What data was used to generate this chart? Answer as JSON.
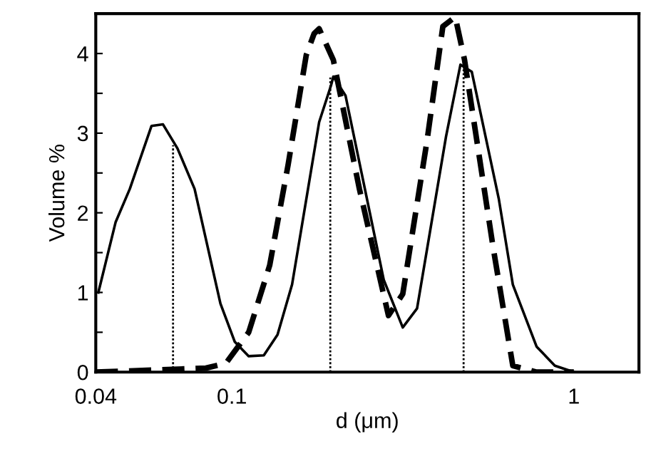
{
  "chart_data": {
    "type": "line",
    "xlabel": "d (μm)",
    "ylabel": "Volume %",
    "log": "x",
    "xlim": [
      0.04,
      1.55
    ],
    "xticks": [
      0.04,
      0.1,
      1
    ],
    "ylim": [
      0,
      4.5
    ],
    "yticks": [
      0,
      {
        "value": 0.5,
        "label": null
      },
      1,
      {
        "value": 1.5,
        "label": null
      },
      2,
      {
        "value": 2.5,
        "label": null
      },
      3,
      {
        "value": 3.5,
        "label": null
      },
      4
    ],
    "grid": false,
    "legend": false,
    "marker": "none",
    "series": [
      {
        "color": "#000000",
        "line_style": "solid",
        "x": [
          0.0407,
          0.0457,
          0.0503,
          0.0582,
          0.0629,
          0.0693,
          0.0778,
          0.0926,
          0.102,
          0.112,
          0.124,
          0.136,
          0.15,
          0.18,
          0.195,
          0.198,
          0.215,
          0.278,
          0.316,
          0.348,
          0.423,
          0.466,
          0.503,
          0.603,
          0.663,
          0.778,
          0.88,
          1.0
        ],
        "values": [
          1.0,
          1.88,
          2.3,
          3.09,
          3.11,
          2.81,
          2.3,
          0.86,
          0.38,
          0.2,
          0.21,
          0.47,
          1.1,
          3.14,
          3.6,
          3.71,
          3.47,
          1.16,
          0.56,
          0.8,
          2.96,
          3.86,
          3.77,
          2.18,
          1.1,
          0.32,
          0.08,
          0.0
        ]
      },
      {
        "color": "#000000",
        "line_style": "dashed",
        "x": [
          0.04,
          0.084,
          0.096,
          0.112,
          0.129,
          0.146,
          0.165,
          0.174,
          0.18,
          0.198,
          0.236,
          0.287,
          0.316,
          0.372,
          0.414,
          0.45,
          0.479,
          0.58,
          0.663,
          0.778,
          1.0
        ],
        "values": [
          0.0,
          0.05,
          0.11,
          0.5,
          1.34,
          2.6,
          3.98,
          4.25,
          4.31,
          3.92,
          2.3,
          0.71,
          0.98,
          2.9,
          4.34,
          4.46,
          3.92,
          1.58,
          0.08,
          0.0,
          0.0
        ]
      },
      {
        "color": "#000000",
        "line_style": "dotted",
        "x": [
          0.0673,
          0.0673
        ],
        "values": [
          0,
          2.85
        ]
      },
      {
        "color": "#000000",
        "line_style": "dotted",
        "x": [
          0.194,
          0.194
        ],
        "values": [
          0,
          3.7
        ]
      },
      {
        "color": "#000000",
        "line_style": "dotted",
        "x": [
          0.476,
          0.476
        ],
        "values": [
          0,
          3.8
        ]
      }
    ]
  }
}
